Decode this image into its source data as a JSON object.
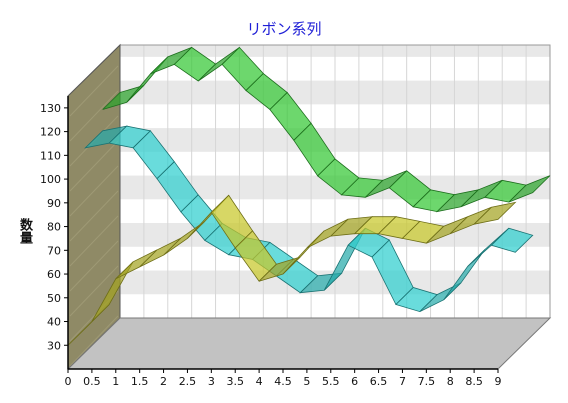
{
  "chart_data": {
    "type": "line",
    "style": "3d-ribbon",
    "title": "リボン系列",
    "ylabel": "数量",
    "xlabel": "",
    "xlim": [
      0,
      9
    ],
    "ylim": [
      20,
      135
    ],
    "x_ticks": [
      "0",
      "0.5",
      "1",
      "1.5",
      "2",
      "2.5",
      "3",
      "3.5",
      "4",
      "4.5",
      "5",
      "5.5",
      "6",
      "6.5",
      "7",
      "7.5",
      "8",
      "8.5",
      "9"
    ],
    "y_ticks": [
      30,
      40,
      50,
      60,
      70,
      80,
      90,
      100,
      110,
      120,
      130
    ],
    "grid": true,
    "legend": "none",
    "x": [
      0,
      0.5,
      1,
      1.5,
      2,
      2.5,
      3,
      3.5,
      4,
      4.5,
      5,
      5.5,
      6,
      6.5,
      7,
      7.5,
      8,
      8.5,
      9
    ],
    "series": [
      {
        "values": [
          30,
          40,
          58,
          63,
          68,
          75,
          86,
          71,
          57,
          60,
          71,
          76,
          77,
          77,
          75,
          73,
          77,
          81,
          83
        ],
        "color": "#c8c82a"
      },
      {
        "values": [
          106,
          108,
          106,
          93,
          79,
          67,
          61,
          59,
          52,
          45,
          46,
          65,
          60,
          40,
          37,
          42,
          56,
          65,
          62
        ],
        "color": "#2fcfcf"
      },
      {
        "values": [
          115,
          118,
          130,
          134,
          127,
          134,
          123,
          115,
          102,
          87,
          79,
          78,
          82,
          74,
          72,
          74,
          78,
          76,
          80
        ],
        "color": "#35c835"
      }
    ],
    "colors": {
      "back_wall_band": "#e8e8e8",
      "left_wall": "#8f8a66",
      "floor": "#c2c2c2",
      "title": "#1f1fd6"
    }
  }
}
